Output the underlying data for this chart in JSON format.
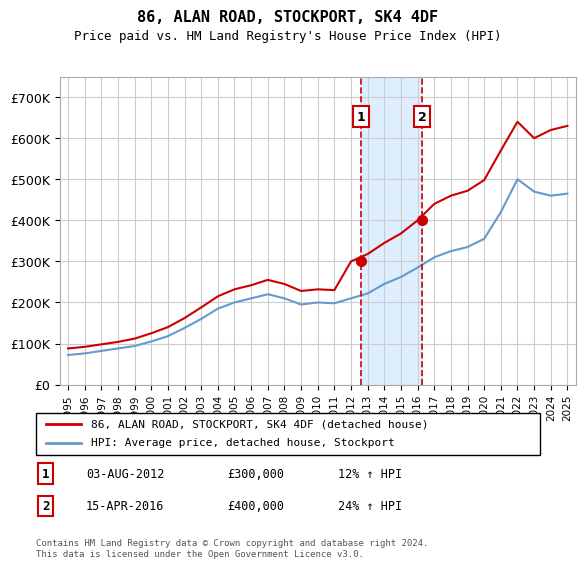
{
  "title": "86, ALAN ROAD, STOCKPORT, SK4 4DF",
  "subtitle": "Price paid vs. HM Land Registry's House Price Index (HPI)",
  "xlabel": "",
  "ylabel": "",
  "ylim": [
    0,
    750000
  ],
  "yticks": [
    0,
    100000,
    200000,
    300000,
    400000,
    500000,
    600000,
    700000
  ],
  "ytick_labels": [
    "£0",
    "£100K",
    "£200K",
    "£300K",
    "£400K",
    "£500K",
    "£600K",
    "£700K"
  ],
  "xlim_start": 1994.5,
  "xlim_end": 2025.5,
  "purchase1_date": 2012.583,
  "purchase1_price": 300000,
  "purchase1_label": "1",
  "purchase1_annotation": "03-AUG-2012",
  "purchase1_price_str": "£300,000",
  "purchase1_hpi": "12% ↑ HPI",
  "purchase2_date": 2016.286,
  "purchase2_price": 400000,
  "purchase2_label": "2",
  "purchase2_annotation": "15-APR-2016",
  "purchase2_price_str": "£400,000",
  "purchase2_hpi": "24% ↑ HPI",
  "line1_color": "#cc0000",
  "line2_color": "#6699cc",
  "shade_color": "#ddeeff",
  "marker_box_color": "#cc0000",
  "legend_line1": "86, ALAN ROAD, STOCKPORT, SK4 4DF (detached house)",
  "legend_line2": "HPI: Average price, detached house, Stockport",
  "footer": "Contains HM Land Registry data © Crown copyright and database right 2024.\nThis data is licensed under the Open Government Licence v3.0.",
  "hpi_years": [
    1995,
    1996,
    1997,
    1998,
    1999,
    2000,
    2001,
    2002,
    2003,
    2004,
    2005,
    2006,
    2007,
    2008,
    2009,
    2010,
    2011,
    2012,
    2013,
    2014,
    2015,
    2016,
    2017,
    2018,
    2019,
    2020,
    2021,
    2022,
    2023,
    2024,
    2025
  ],
  "hpi_values": [
    72000,
    76000,
    82000,
    88000,
    94000,
    105000,
    118000,
    138000,
    160000,
    185000,
    200000,
    210000,
    220000,
    210000,
    195000,
    200000,
    198000,
    210000,
    222000,
    245000,
    262000,
    285000,
    310000,
    325000,
    335000,
    355000,
    420000,
    500000,
    470000,
    460000,
    465000
  ],
  "house_years": [
    1995,
    1996,
    1997,
    1998,
    1999,
    2000,
    2001,
    2002,
    2003,
    2004,
    2005,
    2006,
    2007,
    2008,
    2009,
    2010,
    2011,
    2012,
    2013,
    2014,
    2015,
    2016,
    2017,
    2018,
    2019,
    2020,
    2021,
    2022,
    2023,
    2024,
    2025
  ],
  "house_values": [
    88000,
    92000,
    98000,
    104000,
    112000,
    125000,
    140000,
    162000,
    188000,
    215000,
    232000,
    242000,
    255000,
    245000,
    228000,
    232000,
    230000,
    300000,
    318000,
    345000,
    368000,
    400000,
    440000,
    460000,
    472000,
    498000,
    570000,
    640000,
    600000,
    620000,
    630000
  ],
  "background_color": "#ffffff",
  "grid_color": "#cccccc"
}
